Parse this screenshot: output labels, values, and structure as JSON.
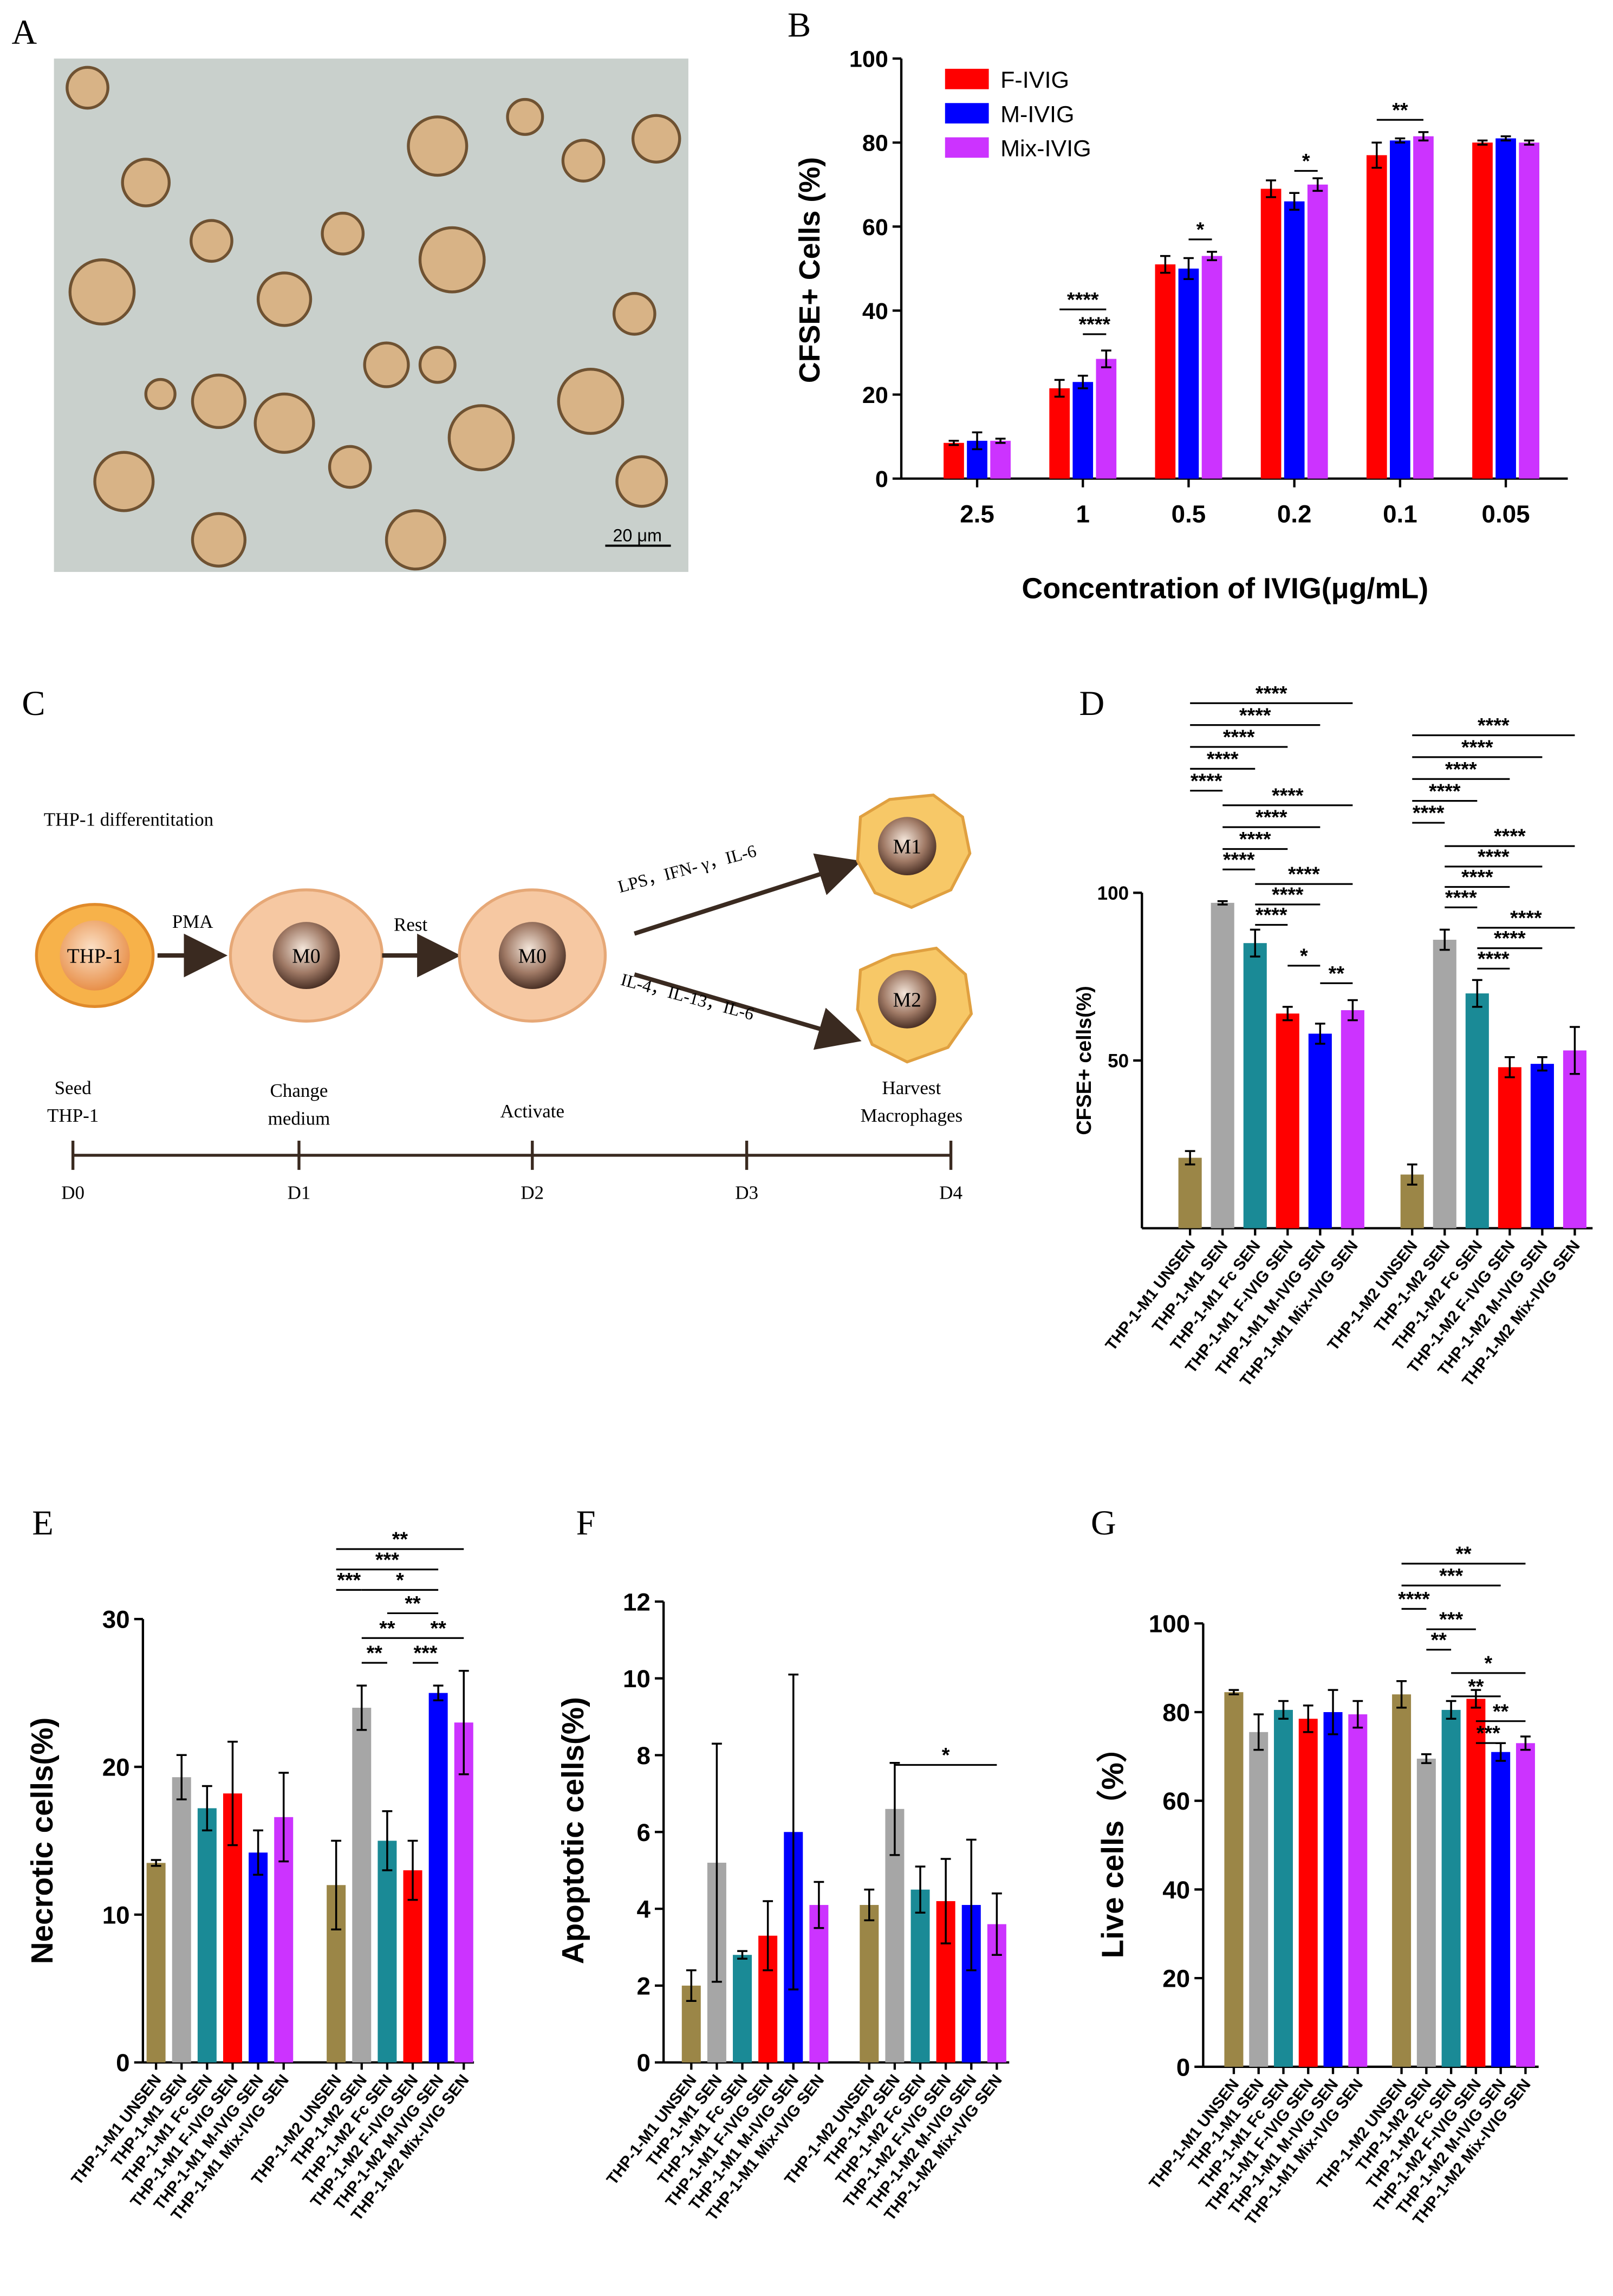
{
  "panel_a": {
    "panel": "A",
    "scale_bar": "20 μm"
  },
  "diagram": {
    "panel": "C",
    "title": "THP-1 differentitation",
    "cells": [
      "THP-1",
      "M0",
      "M0",
      "M1",
      "M2"
    ],
    "steps": [
      "PMA",
      "Rest"
    ],
    "stimuli": [
      "LPS，IFN- γ，IL-6",
      "IL-4，IL-13，IL-6"
    ],
    "timeline_labels": [
      [
        "Seed",
        "THP-1"
      ],
      [
        "Change",
        "medium"
      ],
      [
        "Activate"
      ],
      [
        "Harvest",
        "Macrophages"
      ]
    ],
    "days": [
      "D0",
      "D1",
      "D2",
      "D3",
      "D4"
    ]
  },
  "chart_data": [
    {
      "type": "bar",
      "panel": "B",
      "y_label": "CFSE+ Cells (%)",
      "x_label": "Concentration of IVIG(μg/mL)",
      "categories": [
        "2.5",
        "1",
        "0.5",
        "0.2",
        "0.1",
        "0.05"
      ],
      "legend": "upper left",
      "series": [
        {
          "name": "F-IVIG",
          "color": "#ff0000",
          "values": [
            8.5,
            21.5,
            51,
            69,
            77,
            80
          ],
          "errors": [
            0.5,
            2,
            2,
            2,
            3,
            0.5
          ]
        },
        {
          "name": "M-IVIG",
          "color": "#0000ff",
          "values": [
            9,
            23,
            50,
            66,
            80.5,
            81
          ],
          "errors": [
            2,
            1.5,
            2.5,
            2,
            0.5,
            0.5
          ]
        },
        {
          "name": "Mix-IVIG",
          "color": "#cc33ff",
          "values": [
            9,
            28.5,
            53,
            70,
            81.5,
            80
          ],
          "errors": [
            0.5,
            2,
            1,
            1.5,
            1,
            0.5
          ]
        }
      ],
      "ylim": [
        0,
        100
      ],
      "yticks": [
        0,
        20,
        40,
        60,
        80,
        100
      ],
      "annotations": [
        "****",
        "****",
        "*",
        "*",
        "**"
      ]
    },
    {
      "type": "bar",
      "panel": "D",
      "y_label": "CFSE+ cells(%)",
      "categories": [
        "THP-1-M1 UNSEN",
        "THP-1-M1 SEN",
        "THP-1-M1 Fc SEN",
        "THP-1-M1 F-IVIG SEN",
        "THP-1-M1 M-IVIG SEN",
        "THP-1-M1 Mix-IVIG SEN",
        "THP-1-M2 UNSEN",
        "THP-1-M2 SEN",
        "THP-1-M2 Fc SEN",
        "THP-1-M2 F-IVIG SEN",
        "THP-1-M2 M-IVIG SEN",
        "THP-1-M2 Mix-IVIG SEN"
      ],
      "values": [
        21,
        97,
        85,
        64,
        58,
        65,
        16,
        86,
        70,
        48,
        49,
        53
      ],
      "errors": [
        2,
        0.5,
        4,
        2,
        3,
        3,
        3,
        3,
        4,
        3,
        2,
        7
      ],
      "colors": [
        "#9b8647",
        "#a6a6a6",
        "#1a8a96",
        "#ff0000",
        "#0000ff",
        "#cc33ff",
        "#9b8647",
        "#a6a6a6",
        "#1a8a96",
        "#ff0000",
        "#0000ff",
        "#cc33ff"
      ],
      "ylim": [
        0,
        100
      ],
      "yticks": [
        50,
        100
      ],
      "annotations": [
        "****",
        "****",
        "****",
        "****",
        "****",
        "****",
        "****",
        "****",
        "****",
        "****",
        "****",
        "****",
        "*",
        "**",
        "****",
        "****",
        "****",
        "****",
        "****",
        "****",
        "****",
        "****",
        "****",
        "****",
        "****",
        "****"
      ]
    },
    {
      "type": "bar",
      "panel": "E",
      "y_label": "Necrotic cells(%)",
      "categories": [
        "THP-1-M1 UNSEN",
        "THP-1-M1 SEN",
        "THP-1-M1 Fc SEN",
        "THP-1-M1 F-IVIG SEN",
        "THP-1-M1 M-IVIG SEN",
        "THP-1-M1 Mix-IVIG SEN",
        "THP-1-M2 UNSEN",
        "THP-1-M2 SEN",
        "THP-1-M2 Fc SEN",
        "THP-1-M2 F-IVIG SEN",
        "THP-1-M2 M-IVIG SEN",
        "THP-1-M2 Mix-IVIG SEN"
      ],
      "values": [
        13.5,
        19.3,
        17.2,
        18.2,
        14.2,
        16.6,
        12,
        24,
        15,
        13,
        25,
        23
      ],
      "errors": [
        0.2,
        1.5,
        1.5,
        3.5,
        1.5,
        3,
        3,
        1.5,
        2,
        2,
        0.5,
        3.5
      ],
      "colors": [
        "#9b8647",
        "#a6a6a6",
        "#1a8a96",
        "#ff0000",
        "#0000ff",
        "#cc33ff",
        "#9b8647",
        "#a6a6a6",
        "#1a8a96",
        "#ff0000",
        "#0000ff",
        "#cc33ff"
      ],
      "ylim": [
        0,
        30
      ],
      "yticks": [
        0,
        10,
        20,
        30
      ],
      "annotations": [
        "**",
        "***",
        "***",
        "*",
        "**",
        "**",
        "**",
        "**",
        "***"
      ]
    },
    {
      "type": "bar",
      "panel": "F",
      "y_label": "Apoptotic cells(%)",
      "categories": [
        "THP-1-M1 UNSEN",
        "THP-1-M1 SEN",
        "THP-1-M1 Fc SEN",
        "THP-1-M1 F-IVIG SEN",
        "THP-1-M1 M-IVIG SEN",
        "THP-1-M1 Mix-IVIG SEN",
        "THP-1-M2 UNSEN",
        "THP-1-M2 SEN",
        "THP-1-M2 Fc SEN",
        "THP-1-M2 F-IVIG SEN",
        "THP-1-M2 M-IVIG SEN",
        "THP-1-M2 Mix-IVIG SEN"
      ],
      "values": [
        2,
        5.2,
        2.8,
        3.3,
        6,
        4.1,
        4.1,
        6.6,
        4.5,
        4.2,
        4.1,
        3.6
      ],
      "errors": [
        0.4,
        3.1,
        0.1,
        0.9,
        4.1,
        0.6,
        0.4,
        1.2,
        0.6,
        1.1,
        1.7,
        0.8
      ],
      "colors": [
        "#9b8647",
        "#a6a6a6",
        "#1a8a96",
        "#ff0000",
        "#0000ff",
        "#cc33ff",
        "#9b8647",
        "#a6a6a6",
        "#1a8a96",
        "#ff0000",
        "#0000ff",
        "#cc33ff"
      ],
      "ylim": [
        0,
        12
      ],
      "yticks": [
        0,
        2,
        4,
        6,
        8,
        10,
        12
      ],
      "annotations": [
        "*"
      ]
    },
    {
      "type": "bar",
      "panel": "G",
      "y_label": "Live cells（%）",
      "categories": [
        "THP-1-M1 UNSEN",
        "THP-1-M1 SEN",
        "THP-1-M1 Fc SEN",
        "THP-1-M1 F-IVIG SEN",
        "THP-1-M1 M-IVIG SEN",
        "THP-1-M1 Mix-IVIG SEN",
        "THP-1-M2 UNSEN",
        "THP-1-M2 SEN",
        "THP-1-M2 Fc SEN",
        "THP-1-M2 F-IVIG SEN",
        "THP-1-M2 M-IVIG SEN",
        "THP-1-M2 Mix-IVIG SEN"
      ],
      "values": [
        84.5,
        75.5,
        80.5,
        78.5,
        80,
        79.5,
        84,
        69.5,
        80.5,
        83,
        71,
        73
      ],
      "errors": [
        0.5,
        4,
        2,
        3,
        5,
        3,
        3,
        1,
        2,
        2,
        2,
        1.5
      ],
      "colors": [
        "#9b8647",
        "#a6a6a6",
        "#1a8a96",
        "#ff0000",
        "#0000ff",
        "#cc33ff",
        "#9b8647",
        "#a6a6a6",
        "#1a8a96",
        "#ff0000",
        "#0000ff",
        "#cc33ff"
      ],
      "ylim": [
        0,
        100
      ],
      "yticks": [
        0,
        20,
        40,
        60,
        80,
        100
      ],
      "annotations": [
        "**",
        "***",
        "****",
        "***",
        "**",
        "*",
        "**",
        "**",
        "***"
      ]
    }
  ]
}
